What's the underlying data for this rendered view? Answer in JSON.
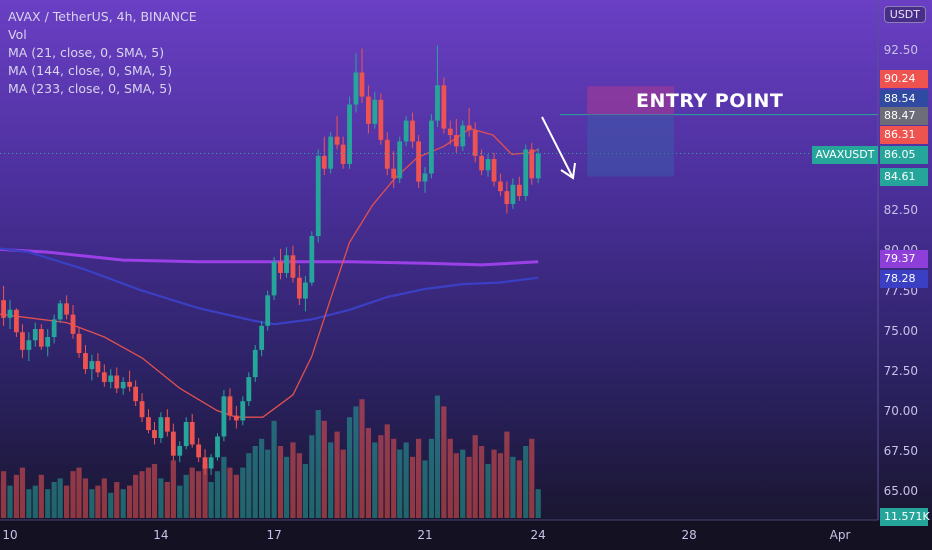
{
  "chart_data": {
    "type": "candlestick",
    "symbol_line": "AVAX / TetherUS, 4h, BINANCE",
    "indicators": [
      "Vol",
      "MA (21, close, 0, SMA, 5)",
      "MA (144, close, 0, SMA, 5)",
      "MA (233, close, 0, SMA, 5)"
    ],
    "currency_button": "USDT",
    "annotation": "ENTRY POINT",
    "symbol_tag": "AVAXUSDT",
    "y_ticks": [
      "92.50",
      "82.50",
      "80.00",
      "77.50",
      "75.00",
      "72.50",
      "70.00",
      "67.50",
      "65.00"
    ],
    "x_ticks": [
      {
        "label": "10",
        "day": 10
      },
      {
        "label": "14",
        "day": 14
      },
      {
        "label": "17",
        "day": 17
      },
      {
        "label": "21",
        "day": 21
      },
      {
        "label": "24",
        "day": 24
      },
      {
        "label": "28",
        "day": 28
      },
      {
        "label": "Apr",
        "day": 32
      }
    ],
    "ylim": [
      63.5,
      95.0
    ],
    "price_tags": [
      {
        "value": "90.24",
        "color": "#ef5350"
      },
      {
        "value": "88.54",
        "color": "#2f4aa0"
      },
      {
        "value": "88.47",
        "color": "#6d6d7a"
      },
      {
        "value": "86.31",
        "color": "#ef5350"
      },
      {
        "value": "86.05",
        "color": "#26a69a"
      },
      {
        "value": "84.61",
        "color": "#26a69a"
      },
      {
        "value": "79.37",
        "color": "#8e3fd9"
      },
      {
        "value": "78.28",
        "color": "#3a3fc4"
      },
      {
        "value": "11.571K",
        "color": "#26a69a"
      }
    ],
    "position": {
      "start_day": 25.3,
      "end_day": 27.6,
      "entry": 88.47,
      "stop": 90.24,
      "target": 84.61
    },
    "hline": 88.47,
    "last_price": 86.05,
    "ma_233": [
      [
        9.5,
        80.1
      ],
      [
        11,
        79.9
      ],
      [
        13,
        79.4
      ],
      [
        15,
        79.3
      ],
      [
        17,
        79.3
      ],
      [
        19,
        79.3
      ],
      [
        21,
        79.2
      ],
      [
        22.5,
        79.1
      ],
      [
        24,
        79.3
      ]
    ],
    "ma_144": [
      [
        9.5,
        80.2
      ],
      [
        10.5,
        79.9
      ],
      [
        12,
        78.8
      ],
      [
        13.5,
        77.5
      ],
      [
        15,
        76.4
      ],
      [
        16.5,
        75.6
      ],
      [
        17,
        75.4
      ],
      [
        18,
        75.7
      ],
      [
        19,
        76.3
      ],
      [
        20,
        77.1
      ],
      [
        21,
        77.6
      ],
      [
        22,
        77.9
      ],
      [
        23,
        78.0
      ],
      [
        24,
        78.3
      ]
    ],
    "ma_21": [
      [
        9.5,
        76.1
      ],
      [
        10.5,
        75.8
      ],
      [
        11.5,
        75.5
      ],
      [
        12.5,
        74.6
      ],
      [
        13.5,
        73.3
      ],
      [
        14.5,
        71.4
      ],
      [
        15.5,
        70.0
      ],
      [
        16,
        69.6
      ],
      [
        16.7,
        69.6
      ],
      [
        17.5,
        71.0
      ],
      [
        18,
        73.4
      ],
      [
        18.5,
        77.0
      ],
      [
        19,
        80.5
      ],
      [
        19.6,
        82.8
      ],
      [
        20.2,
        84.5
      ],
      [
        20.8,
        85.8
      ],
      [
        21.5,
        86.5
      ],
      [
        22.2,
        87.6
      ],
      [
        22.8,
        87.2
      ],
      [
        23.3,
        86.0
      ],
      [
        23.8,
        86.1
      ],
      [
        24,
        86.3
      ]
    ],
    "candles": [
      [
        9.5,
        78.1,
        79.3,
        77.2,
        78.3
      ],
      [
        9.67,
        78.3,
        78.8,
        76.4,
        76.9
      ],
      [
        9.83,
        76.9,
        77.8,
        75.3,
        75.8
      ],
      [
        10.0,
        75.8,
        76.9,
        75.1,
        76.3
      ],
      [
        10.17,
        76.3,
        76.4,
        74.6,
        74.9
      ],
      [
        10.33,
        74.9,
        75.4,
        73.3,
        73.8
      ],
      [
        10.5,
        73.8,
        74.9,
        73.1,
        74.4
      ],
      [
        10.67,
        74.4,
        75.5,
        74.0,
        75.1
      ],
      [
        10.83,
        75.1,
        75.4,
        73.8,
        74.0
      ],
      [
        11.0,
        74.0,
        75.1,
        73.4,
        74.6
      ],
      [
        11.17,
        74.6,
        76.0,
        74.2,
        75.7
      ],
      [
        11.33,
        75.7,
        76.9,
        75.5,
        76.7
      ],
      [
        11.5,
        76.7,
        77.2,
        75.7,
        76.0
      ],
      [
        11.67,
        76.0,
        76.6,
        74.5,
        74.8
      ],
      [
        11.83,
        74.8,
        75.2,
        73.3,
        73.6
      ],
      [
        12.0,
        73.6,
        74.1,
        72.3,
        72.6
      ],
      [
        12.17,
        72.6,
        73.5,
        71.9,
        73.1
      ],
      [
        12.33,
        73.1,
        73.6,
        72.1,
        72.4
      ],
      [
        12.5,
        72.4,
        72.9,
        71.5,
        71.8
      ],
      [
        12.67,
        71.8,
        72.6,
        71.4,
        72.2
      ],
      [
        12.83,
        72.2,
        72.7,
        71.1,
        71.4
      ],
      [
        13.0,
        71.4,
        72.1,
        71.0,
        71.8
      ],
      [
        13.17,
        71.8,
        72.5,
        71.2,
        71.5
      ],
      [
        13.33,
        71.5,
        71.9,
        70.3,
        70.6
      ],
      [
        13.5,
        70.6,
        71.1,
        69.3,
        69.6
      ],
      [
        13.67,
        69.6,
        70.1,
        68.6,
        68.8
      ],
      [
        13.83,
        68.8,
        69.3,
        67.9,
        68.3
      ],
      [
        14.0,
        68.3,
        69.9,
        68.0,
        69.6
      ],
      [
        14.17,
        69.6,
        70.1,
        68.4,
        68.7
      ],
      [
        14.33,
        68.7,
        69.2,
        66.9,
        67.2
      ],
      [
        14.5,
        67.2,
        68.1,
        66.8,
        67.8
      ],
      [
        14.67,
        67.8,
        69.6,
        67.6,
        69.3
      ],
      [
        14.83,
        69.3,
        69.8,
        67.7,
        67.9
      ],
      [
        15.0,
        67.9,
        68.3,
        66.8,
        67.1
      ],
      [
        15.17,
        67.1,
        67.6,
        66.0,
        66.4
      ],
      [
        15.33,
        66.4,
        67.3,
        66.0,
        67.1
      ],
      [
        15.5,
        67.1,
        68.6,
        66.9,
        68.4
      ],
      [
        15.67,
        68.4,
        71.3,
        68.1,
        70.9
      ],
      [
        15.83,
        70.9,
        71.4,
        69.4,
        69.7
      ],
      [
        16.0,
        69.7,
        70.3,
        68.9,
        69.4
      ],
      [
        16.17,
        69.4,
        70.9,
        69.1,
        70.6
      ],
      [
        16.33,
        70.6,
        72.4,
        70.3,
        72.1
      ],
      [
        16.5,
        72.1,
        74.1,
        71.8,
        73.8
      ],
      [
        16.67,
        73.8,
        75.6,
        73.4,
        75.3
      ],
      [
        16.83,
        75.3,
        77.5,
        75.0,
        77.2
      ],
      [
        17.0,
        77.2,
        79.6,
        76.9,
        79.3
      ],
      [
        17.17,
        79.3,
        80.1,
        78.2,
        78.6
      ],
      [
        17.33,
        78.6,
        80.2,
        78.3,
        79.7
      ],
      [
        17.5,
        79.7,
        80.3,
        78.0,
        78.3
      ],
      [
        17.67,
        78.3,
        79.1,
        76.6,
        77.0
      ],
      [
        17.83,
        77.0,
        78.4,
        76.2,
        78.0
      ],
      [
        18.0,
        78.0,
        81.2,
        77.8,
        80.9
      ],
      [
        18.17,
        80.9,
        86.3,
        80.5,
        85.9
      ],
      [
        18.33,
        85.9,
        87.1,
        84.7,
        85.1
      ],
      [
        18.5,
        85.1,
        87.4,
        84.8,
        87.1
      ],
      [
        18.67,
        87.1,
        88.4,
        86.3,
        86.6
      ],
      [
        18.83,
        86.6,
        87.1,
        85.1,
        85.4
      ],
      [
        19.0,
        85.4,
        89.6,
        85.1,
        89.1
      ],
      [
        19.17,
        89.1,
        92.3,
        88.6,
        91.1
      ],
      [
        19.33,
        91.1,
        92.6,
        89.2,
        89.6
      ],
      [
        19.5,
        89.6,
        90.3,
        87.3,
        87.9
      ],
      [
        19.67,
        87.9,
        89.9,
        87.6,
        89.4
      ],
      [
        19.83,
        89.4,
        89.8,
        86.6,
        86.9
      ],
      [
        20.0,
        86.9,
        87.4,
        84.7,
        85.1
      ],
      [
        20.17,
        85.1,
        86.2,
        83.9,
        84.5
      ],
      [
        20.33,
        84.5,
        87.1,
        84.2,
        86.8
      ],
      [
        20.5,
        86.8,
        88.4,
        86.5,
        88.1
      ],
      [
        20.67,
        88.1,
        88.6,
        86.4,
        86.8
      ],
      [
        20.83,
        86.8,
        87.2,
        83.9,
        84.3
      ],
      [
        21.0,
        84.3,
        85.2,
        83.6,
        84.8
      ],
      [
        21.17,
        84.8,
        88.5,
        84.5,
        88.1
      ],
      [
        21.33,
        88.1,
        92.8,
        87.7,
        90.3
      ],
      [
        21.5,
        90.3,
        90.8,
        87.3,
        87.6
      ],
      [
        21.67,
        87.6,
        88.1,
        86.6,
        87.2
      ],
      [
        21.83,
        87.2,
        88.2,
        86.1,
        86.5
      ],
      [
        22.0,
        86.5,
        88.1,
        86.2,
        87.8
      ],
      [
        22.17,
        87.8,
        88.9,
        87.1,
        87.5
      ],
      [
        22.33,
        87.5,
        88.0,
        85.5,
        85.9
      ],
      [
        22.5,
        85.9,
        86.3,
        84.7,
        85.0
      ],
      [
        22.67,
        85.0,
        86.0,
        84.6,
        85.7
      ],
      [
        22.83,
        85.7,
        86.1,
        84.0,
        84.3
      ],
      [
        23.0,
        84.3,
        84.8,
        83.4,
        83.7
      ],
      [
        23.17,
        83.7,
        84.3,
        82.3,
        82.9
      ],
      [
        23.33,
        82.9,
        84.5,
        82.6,
        84.1
      ],
      [
        23.5,
        84.1,
        84.6,
        83.1,
        83.4
      ],
      [
        23.67,
        83.4,
        86.6,
        83.1,
        86.3
      ],
      [
        23.83,
        86.3,
        86.7,
        84.1,
        84.5
      ],
      [
        24.0,
        84.5,
        86.4,
        84.2,
        86.05
      ]
    ],
    "volumes": [
      [
        9.5,
        7,
        0
      ],
      [
        9.67,
        10,
        1
      ],
      [
        9.83,
        13,
        1
      ],
      [
        10.0,
        9,
        0
      ],
      [
        10.17,
        12,
        1
      ],
      [
        10.33,
        14,
        1
      ],
      [
        10.5,
        8,
        0
      ],
      [
        10.67,
        9,
        0
      ],
      [
        10.83,
        12,
        1
      ],
      [
        11.0,
        8,
        0
      ],
      [
        11.17,
        10,
        0
      ],
      [
        11.33,
        11,
        0
      ],
      [
        11.5,
        9,
        1
      ],
      [
        11.67,
        13,
        1
      ],
      [
        11.83,
        14,
        1
      ],
      [
        12.0,
        11,
        1
      ],
      [
        12.17,
        8,
        0
      ],
      [
        12.33,
        9,
        1
      ],
      [
        12.5,
        11,
        1
      ],
      [
        12.67,
        7,
        0
      ],
      [
        12.83,
        10,
        1
      ],
      [
        13.0,
        8,
        0
      ],
      [
        13.17,
        9,
        1
      ],
      [
        13.33,
        12,
        1
      ],
      [
        13.5,
        13,
        1
      ],
      [
        13.67,
        14,
        1
      ],
      [
        13.83,
        15,
        1
      ],
      [
        14.0,
        11,
        0
      ],
      [
        14.17,
        10,
        1
      ],
      [
        14.33,
        16,
        1
      ],
      [
        14.5,
        9,
        0
      ],
      [
        14.67,
        12,
        0
      ],
      [
        14.83,
        14,
        1
      ],
      [
        15.0,
        13,
        1
      ],
      [
        15.17,
        15,
        1
      ],
      [
        15.33,
        10,
        0
      ],
      [
        15.5,
        13,
        0
      ],
      [
        15.67,
        17,
        0
      ],
      [
        15.83,
        14,
        1
      ],
      [
        16.0,
        12,
        1
      ],
      [
        16.17,
        14,
        0
      ],
      [
        16.33,
        18,
        0
      ],
      [
        16.5,
        20,
        0
      ],
      [
        16.67,
        22,
        0
      ],
      [
        16.83,
        19,
        0
      ],
      [
        17.0,
        27,
        0
      ],
      [
        17.17,
        20,
        1
      ],
      [
        17.33,
        17,
        0
      ],
      [
        17.5,
        21,
        1
      ],
      [
        17.67,
        18,
        1
      ],
      [
        17.83,
        15,
        0
      ],
      [
        18.0,
        23,
        0
      ],
      [
        18.17,
        30,
        0
      ],
      [
        18.33,
        27,
        1
      ],
      [
        18.5,
        21,
        0
      ],
      [
        18.67,
        24,
        1
      ],
      [
        18.83,
        19,
        1
      ],
      [
        19.0,
        28,
        0
      ],
      [
        19.17,
        31,
        0
      ],
      [
        19.33,
        33,
        1
      ],
      [
        19.5,
        25,
        1
      ],
      [
        19.67,
        21,
        0
      ],
      [
        19.83,
        23,
        1
      ],
      [
        20.0,
        26,
        1
      ],
      [
        20.17,
        22,
        1
      ],
      [
        20.33,
        19,
        0
      ],
      [
        20.5,
        21,
        0
      ],
      [
        20.67,
        17,
        1
      ],
      [
        20.83,
        22,
        1
      ],
      [
        21.0,
        16,
        0
      ],
      [
        21.17,
        22,
        0
      ],
      [
        21.33,
        34,
        0
      ],
      [
        21.5,
        31,
        1
      ],
      [
        21.67,
        22,
        1
      ],
      [
        21.83,
        18,
        1
      ],
      [
        22.0,
        19,
        0
      ],
      [
        22.17,
        17,
        1
      ],
      [
        22.33,
        23,
        1
      ],
      [
        22.5,
        20,
        1
      ],
      [
        22.67,
        15,
        0
      ],
      [
        22.83,
        19,
        1
      ],
      [
        23.0,
        18,
        1
      ],
      [
        23.17,
        24,
        1
      ],
      [
        23.33,
        17,
        0
      ],
      [
        23.5,
        16,
        1
      ],
      [
        23.67,
        20,
        0
      ],
      [
        23.83,
        22,
        1
      ],
      [
        24.0,
        8,
        0
      ]
    ]
  }
}
